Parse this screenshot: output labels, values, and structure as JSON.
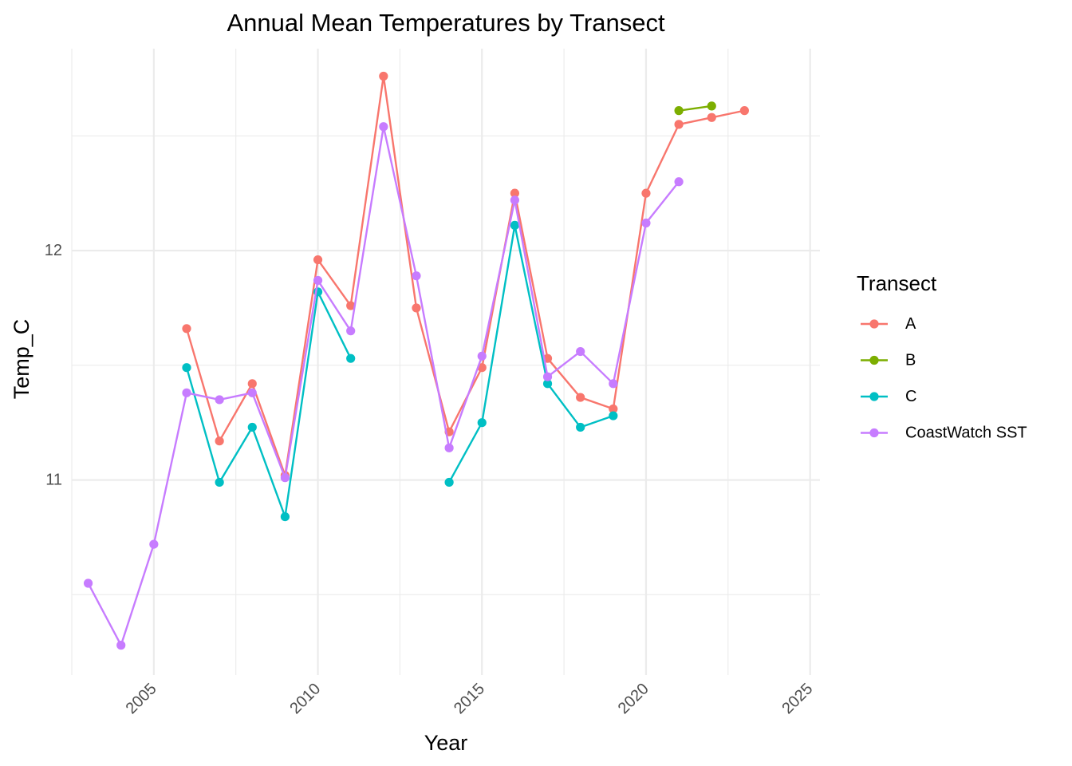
{
  "chart_data": {
    "type": "line",
    "title": "Annual Mean Temperatures by Transect",
    "xlabel": "Year",
    "ylabel": "Temp_C",
    "xlim": [
      2002.5,
      2025.3
    ],
    "ylim": [
      10.15,
      12.88
    ],
    "x_ticks": [
      2005,
      2010,
      2015,
      2020,
      2025
    ],
    "x_tick_labels": [
      "2005",
      "2010",
      "2015",
      "2020",
      "2025"
    ],
    "x_minor_ticks": [
      2002.5,
      2007.5,
      2012.5,
      2017.5,
      2022.5
    ],
    "y_ticks": [
      11,
      12
    ],
    "y_tick_labels": [
      "11",
      "12"
    ],
    "y_minor_ticks": [
      10.5,
      11.5,
      12.5
    ],
    "grid": true,
    "legend_title": "Transect",
    "legend_position": "right",
    "series": [
      {
        "name": "A",
        "color": "#F8766D",
        "x": [
          2006,
          2007,
          2008,
          2009,
          2010,
          2011,
          2012,
          2013,
          2014,
          2015,
          2016,
          2017,
          2018,
          2019,
          2020,
          2021,
          2022,
          2023
        ],
        "y": [
          11.66,
          11.17,
          11.42,
          11.02,
          11.96,
          11.76,
          12.76,
          11.75,
          11.21,
          11.49,
          12.25,
          11.53,
          11.36,
          11.31,
          12.25,
          12.55,
          12.58,
          12.61
        ]
      },
      {
        "name": "B",
        "color": "#7CAE00",
        "x": [
          2021,
          2022
        ],
        "y": [
          12.61,
          12.63
        ]
      },
      {
        "name": "C",
        "color": "#00BFC4",
        "x": [
          2006,
          2007,
          2008,
          2009,
          2010,
          2011,
          2014,
          2015,
          2016,
          2017,
          2018,
          2019
        ],
        "y": [
          11.49,
          10.99,
          11.23,
          10.84,
          11.82,
          11.53,
          10.99,
          11.25,
          12.11,
          11.42,
          11.23,
          11.28
        ]
      },
      {
        "name": "CoastWatch SST",
        "color": "#C77CFF",
        "x": [
          2003,
          2004,
          2005,
          2006,
          2007,
          2008,
          2009,
          2010,
          2011,
          2012,
          2013,
          2014,
          2015,
          2016,
          2017,
          2018,
          2019,
          2020,
          2021
        ],
        "y": [
          10.55,
          10.28,
          10.72,
          11.38,
          11.35,
          11.38,
          11.01,
          11.87,
          11.65,
          12.54,
          11.89,
          11.14,
          11.54,
          12.22,
          11.45,
          11.56,
          11.42,
          12.12,
          12.3
        ]
      }
    ]
  }
}
